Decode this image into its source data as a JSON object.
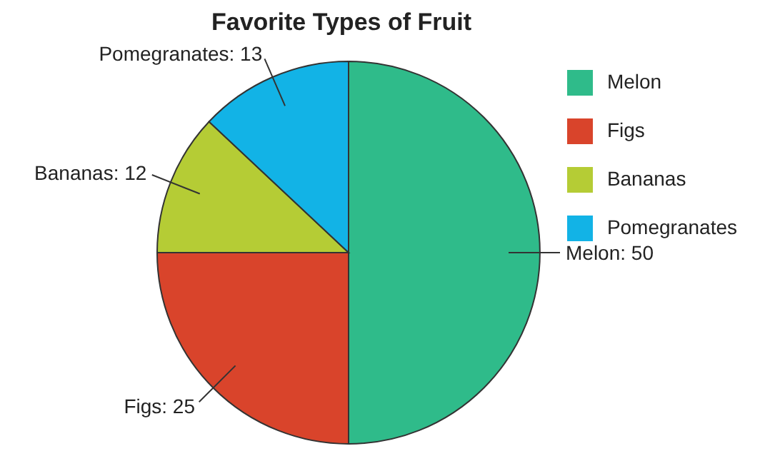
{
  "chart_data": {
    "type": "pie",
    "title": "Favorite Types of Fruit",
    "categories": [
      "Melon",
      "Figs",
      "Bananas",
      "Pomegranates"
    ],
    "values": [
      50,
      25,
      12,
      13
    ],
    "colors": [
      "#2fbb8a",
      "#d9442b",
      "#b5cc35",
      "#12b3e6"
    ],
    "value_labels": [
      "Melon: 50",
      "Figs: 25",
      "Bananas: 12",
      "Pomegranates: 13"
    ],
    "legend": "right"
  }
}
